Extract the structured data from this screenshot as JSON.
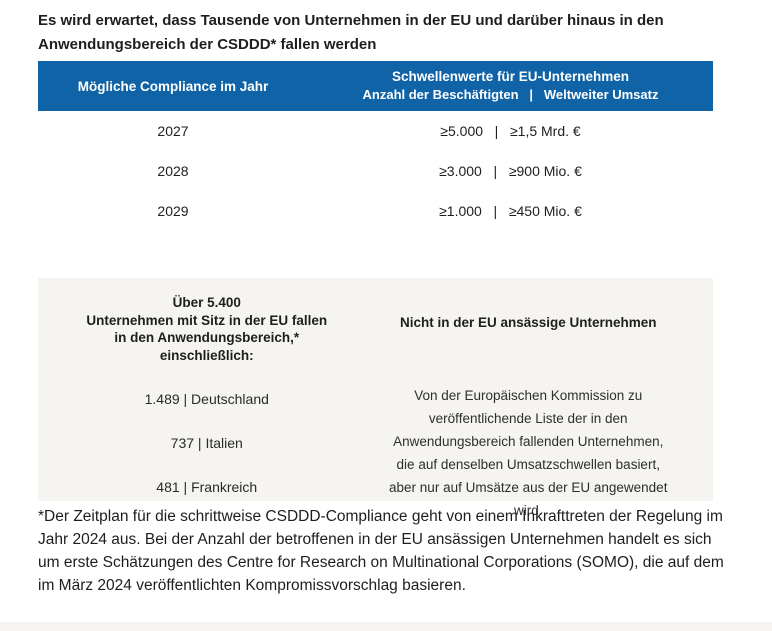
{
  "page": {
    "title": "Es wird erwartet, dass Tausende von Unternehmen in der EU und darüber hinaus in den\nAnwendungsbereich der CSDDD* fallen werden"
  },
  "compliance_table": {
    "header": {
      "year_column": "Mögliche Compliance im Jahr",
      "thresholds_title": "Schwellenwerte für EU-Unternehmen",
      "thresholds_subtitle": "Anzahl der Beschäftigten   |   Weltweiter Umsatz"
    },
    "rows": [
      {
        "year": "2027",
        "thresholds": "≥5.000   |   ≥1,5 Mrd. €"
      },
      {
        "year": "2028",
        "thresholds": "≥3.000   |   ≥900 Mio. €"
      },
      {
        "year": "2029",
        "thresholds": "≥1.000   |   ≥450 Mio. €"
      }
    ]
  },
  "scope_panel": {
    "eu_companies": {
      "heading": "Über 5.400\nUnternehmen mit Sitz in der EU fallen\nin den Anwendungsbereich,*\neinschließlich:",
      "stats": [
        "1.489 | Deutschland",
        "737 | Italien",
        "481 | Frankreich"
      ]
    },
    "non_eu_companies": {
      "heading": "Nicht in der EU ansässige Unternehmen",
      "body": "Von der Europäischen Kommission zu veröffentlichende Liste der in den Anwendungsbereich fallenden Unternehmen, die auf denselben Umsatzschwellen basiert, aber nur auf Umsätze aus der EU angewendet wird."
    }
  },
  "footnote": "*Der Zeitplan für die schrittweise CSDDD-Compliance geht von einem Inkrafttreten der Regelung im Jahr 2024 aus. Bei der Anzahl der betroffenen in der EU ansässigen Unternehmen handelt es sich um erste Schätzungen des Centre for Research on Multinational Corporations (SOMO), die auf dem im März 2024 veröffentlichten Kompromissvorschlag basieren.",
  "colors": {
    "header_blue": "#0f63a6",
    "panel_gray": "#f5f4f1",
    "text_dark": "#1e1e1e",
    "bottom_bar_gray": "#f6f5f2"
  }
}
